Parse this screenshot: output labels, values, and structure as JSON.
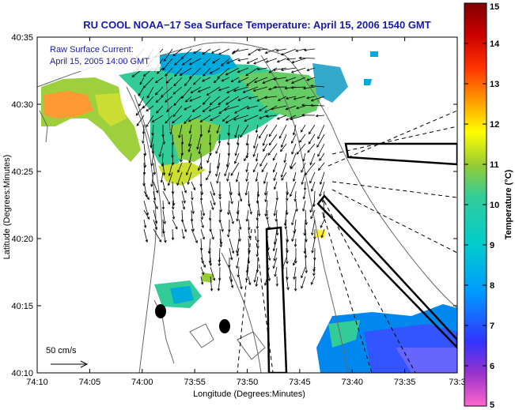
{
  "title": "RU COOL  NOAA−17  Sea Surface Temperature:  April 15, 2006 1540 GMT",
  "legend": {
    "line1": "Raw Surface Current:",
    "line2": "April 15, 2005 14:00 GMT",
    "scale_label": "50 cm/s"
  },
  "axes": {
    "xlabel": "Longitude (Degrees:Minutes)",
    "ylabel": "Latitude (Degrees:Minutes)",
    "xticks": [
      "74:10",
      "74:05",
      "74:00",
      "73:55",
      "73:50",
      "73:45",
      "73:40",
      "73:35",
      "73:3"
    ],
    "yticks": [
      "40:35",
      "40:30",
      "40:25",
      "40:20",
      "40:15",
      "40:10"
    ]
  },
  "colorbar": {
    "label": "Temperature (°C)",
    "ticks": [
      "15",
      "14",
      "13",
      "12",
      "11",
      "10",
      "9",
      "8",
      "7",
      "6",
      "5"
    ],
    "min": 5,
    "max": 15,
    "colors": [
      "#ff66cc",
      "#9933cc",
      "#3333ff",
      "#0099ff",
      "#00cccc",
      "#33cc99",
      "#99cc33",
      "#ffff00",
      "#ff9900",
      "#ff3300",
      "#cc0000",
      "#990000"
    ]
  },
  "colors": {
    "title": "#1a1aa6",
    "vector": "#000000",
    "land_outline": "#666666"
  }
}
